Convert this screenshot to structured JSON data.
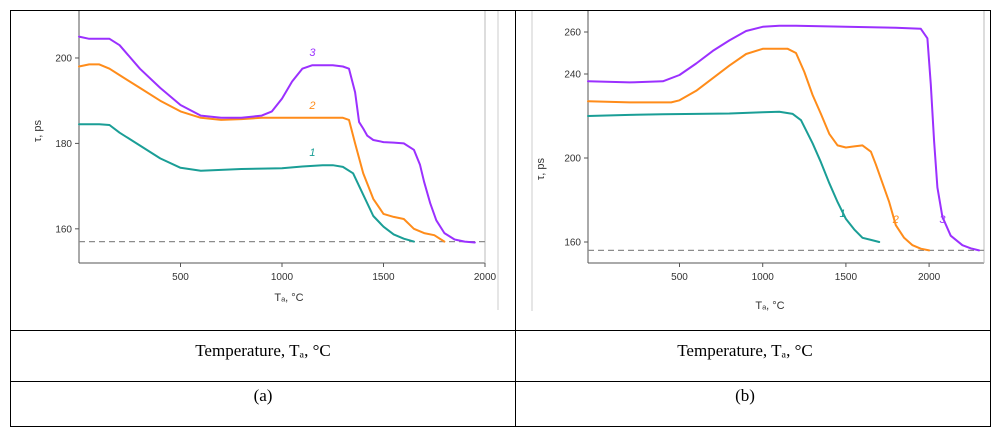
{
  "captions": {
    "left_row1": "Temperature, Tₐ, °C",
    "right_row1": "Temperature, Tₐ, °C",
    "left_row2": "(a)",
    "right_row2": "(b)"
  },
  "colors": {
    "curve1": "#1a9e96",
    "curve2": "#ff8c1a",
    "curve3": "#9b30ff",
    "dashed": "#8c8c8c",
    "axis": "#555555"
  },
  "chart_data": [
    {
      "type": "line",
      "panel": "a",
      "xlabel": "Tₐ, °C",
      "ylabel": "τ, ps",
      "xlim": [
        0,
        2000
      ],
      "ylim": [
        152,
        211
      ],
      "xticks": [
        500,
        1000,
        1500,
        2000
      ],
      "yticks": [
        160,
        180,
        200
      ],
      "reference_line": 157,
      "series": [
        {
          "name": "1",
          "label_at": [
            1150,
            177
          ],
          "x": [
            0,
            100,
            150,
            200,
            300,
            400,
            500,
            600,
            700,
            800,
            900,
            1000,
            1100,
            1200,
            1250,
            1300,
            1350,
            1400,
            1450,
            1500,
            1550,
            1600,
            1650
          ],
          "y": [
            184.5,
            184.5,
            184.3,
            182.5,
            179.5,
            176.5,
            174.3,
            173.6,
            173.8,
            174,
            174.1,
            174.2,
            174.6,
            174.9,
            174.9,
            174.5,
            173,
            168,
            163,
            160.5,
            158.7,
            157.7,
            157
          ]
        },
        {
          "name": "2",
          "label_at": [
            1150,
            188
          ],
          "x": [
            0,
            50,
            100,
            150,
            200,
            300,
            400,
            500,
            600,
            700,
            800,
            900,
            1000,
            1100,
            1200,
            1250,
            1300,
            1330,
            1360,
            1400,
            1450,
            1500,
            1550,
            1600,
            1650,
            1700,
            1750,
            1800
          ],
          "y": [
            198,
            198.5,
            198.5,
            197.5,
            196,
            193,
            190,
            187.5,
            186,
            185.5,
            185.7,
            186,
            186,
            186,
            186,
            186,
            186,
            185.5,
            180,
            173,
            167,
            163.5,
            162.8,
            162.3,
            160,
            159,
            158.5,
            157
          ]
        },
        {
          "name": "3",
          "label_at": [
            1150,
            200.5
          ],
          "x": [
            0,
            50,
            100,
            150,
            200,
            300,
            400,
            500,
            600,
            700,
            800,
            900,
            950,
            1000,
            1050,
            1100,
            1150,
            1200,
            1250,
            1300,
            1330,
            1360,
            1380,
            1400,
            1420,
            1450,
            1500,
            1550,
            1600,
            1650,
            1680,
            1700,
            1730,
            1760,
            1800,
            1850,
            1900,
            1950
          ],
          "y": [
            205,
            204.5,
            204.5,
            204.5,
            203,
            197.5,
            193,
            189,
            186.5,
            186,
            186,
            186.5,
            187.5,
            190.5,
            194.5,
            197.5,
            198.3,
            198.3,
            198.3,
            198,
            197.5,
            192,
            185,
            183.5,
            181.8,
            180.8,
            180.3,
            180.2,
            180,
            178.5,
            175,
            171,
            166,
            162,
            159,
            157.5,
            157,
            156.8
          ]
        }
      ]
    },
    {
      "type": "line",
      "panel": "b",
      "xlabel": "Tₐ, °C",
      "ylabel": "τ, ps",
      "xlim": [
        -50,
        2330
      ],
      "ylim": [
        150,
        270
      ],
      "xticks": [
        500,
        1000,
        1500,
        2000
      ],
      "yticks": [
        160,
        200,
        240,
        260
      ],
      "reference_line": 156,
      "series": [
        {
          "name": "1",
          "label_at": [
            1480,
            172
          ],
          "x": [
            -50,
            200,
            400,
            600,
            800,
            1000,
            1100,
            1180,
            1230,
            1300,
            1350,
            1400,
            1450,
            1500,
            1550,
            1600,
            1650,
            1700
          ],
          "y": [
            220,
            220.5,
            220.8,
            221,
            221.2,
            221.8,
            222,
            221,
            218,
            207,
            198,
            188,
            179,
            171,
            166,
            162,
            161,
            160
          ]
        },
        {
          "name": "2",
          "label_at": [
            1800,
            169
          ],
          "x": [
            -50,
            200,
            450,
            500,
            600,
            700,
            800,
            900,
            1000,
            1100,
            1150,
            1200,
            1250,
            1300,
            1350,
            1400,
            1450,
            1500,
            1550,
            1600,
            1650,
            1680,
            1720,
            1760,
            1800,
            1850,
            1900,
            1950,
            2000
          ],
          "y": [
            227,
            226.5,
            226.5,
            227.5,
            232,
            238,
            244,
            249.5,
            252,
            252,
            252,
            250,
            241,
            230,
            221,
            211.5,
            206,
            205,
            205.5,
            206,
            203,
            197,
            188,
            179,
            168,
            162,
            158.5,
            156.8,
            156
          ]
        },
        {
          "name": "3",
          "label_at": [
            2080,
            169
          ],
          "x": [
            -50,
            200,
            400,
            500,
            600,
            700,
            800,
            900,
            1000,
            1100,
            1200,
            1500,
            1800,
            1950,
            1990,
            2010,
            2030,
            2050,
            2080,
            2130,
            2200,
            2250,
            2300
          ],
          "y": [
            236.5,
            236,
            236.5,
            239.5,
            245,
            251,
            256,
            260.5,
            262.5,
            263,
            263,
            262.5,
            262,
            261.5,
            257,
            235,
            208,
            186,
            172,
            163,
            158.5,
            157,
            156
          ]
        }
      ]
    }
  ]
}
